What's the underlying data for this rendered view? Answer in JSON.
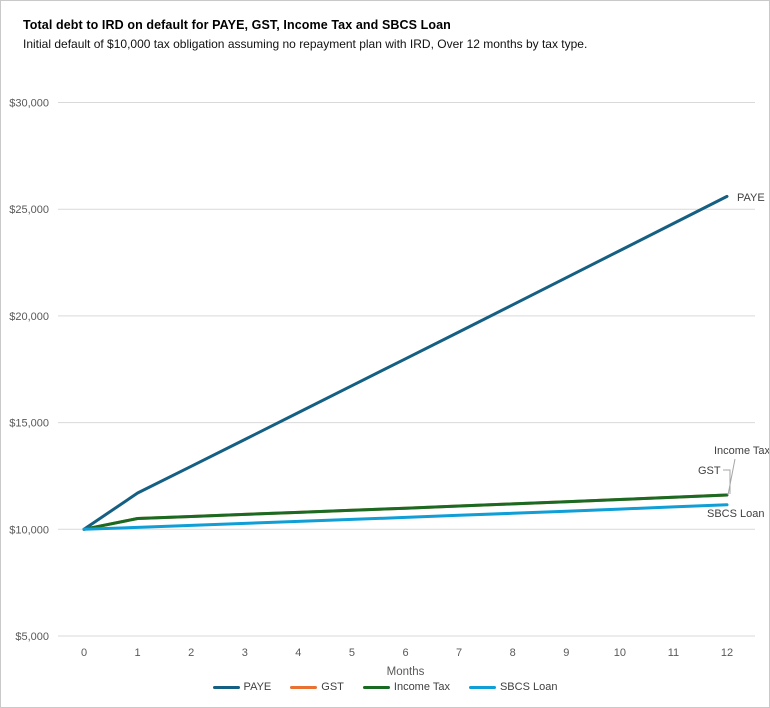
{
  "chart": {
    "title": "Total debt to IRD on default for PAYE, GST, Income Tax and SBCS Loan",
    "subtitle": "Initial default of $10,000 tax obligation assuming no repayment plan with IRD, Over 12 months by tax type."
  },
  "chart_data": {
    "type": "line",
    "title": "Total debt to IRD on default for PAYE, GST, Income Tax and SBCS Loan",
    "subtitle": "Initial default of $10,000 tax obligation assuming no repayment plan with IRD, Over 12 months by tax type.",
    "xlabel": "Months",
    "x": [
      0,
      1,
      2,
      3,
      4,
      5,
      6,
      7,
      8,
      9,
      10,
      11,
      12
    ],
    "xtick_labels": [
      "0",
      "1",
      "2",
      "3",
      "4",
      "5",
      "6",
      "7",
      "8",
      "9",
      "10",
      "11",
      "12"
    ],
    "ylim": [
      5000,
      30000
    ],
    "ytick_step": 5000,
    "yticks": [
      5000,
      10000,
      15000,
      20000,
      25000,
      30000
    ],
    "ytick_labels": [
      "$5,000",
      "$10,000",
      "$15,000",
      "$20,000",
      "$25,000",
      "$30,000"
    ],
    "grid": true,
    "legend_position": "bottom",
    "series": [
      {
        "name": "PAYE",
        "color": "#156082",
        "values": [
          10000,
          11700,
          12950,
          14210,
          15470,
          16730,
          17990,
          19250,
          20520,
          21790,
          23060,
          24330,
          25600
        ]
      },
      {
        "name": "GST",
        "color": "#E97132",
        "values": [
          10000,
          10504,
          10600,
          10696,
          10793,
          10892,
          10991,
          11091,
          11192,
          11294,
          11396,
          11500,
          11605
        ]
      },
      {
        "name": "Income Tax",
        "color": "#196B24",
        "values": [
          10000,
          10504,
          10600,
          10696,
          10793,
          10892,
          10991,
          11091,
          11192,
          11294,
          11396,
          11500,
          11605
        ]
      },
      {
        "name": "SBCS Loan",
        "color": "#0F9ED5",
        "values": [
          10000,
          10091,
          10183,
          10275,
          10369,
          10463,
          10558,
          10654,
          10751,
          10849,
          10948,
          11048,
          11148
        ]
      }
    ],
    "end_labels": [
      {
        "series": "PAYE",
        "text": "PAYE"
      },
      {
        "series": "GST",
        "text": "GST"
      },
      {
        "series": "Income Tax",
        "text": "Income Tax"
      },
      {
        "series": "SBCS Loan",
        "text": "SBCS Loan"
      }
    ],
    "colors": {
      "gridline": "#D9D9D9",
      "tick_label": "#595959",
      "axis_title": "#595959",
      "end_label": "#404040",
      "leader": "#A6A6A6",
      "background": "#FFFFFF"
    }
  },
  "legend": {
    "items": [
      {
        "label": "PAYE",
        "color": "#156082"
      },
      {
        "label": "GST",
        "color": "#E97132"
      },
      {
        "label": "Income Tax",
        "color": "#196B24"
      },
      {
        "label": "SBCS Loan",
        "color": "#0F9ED5"
      }
    ]
  }
}
